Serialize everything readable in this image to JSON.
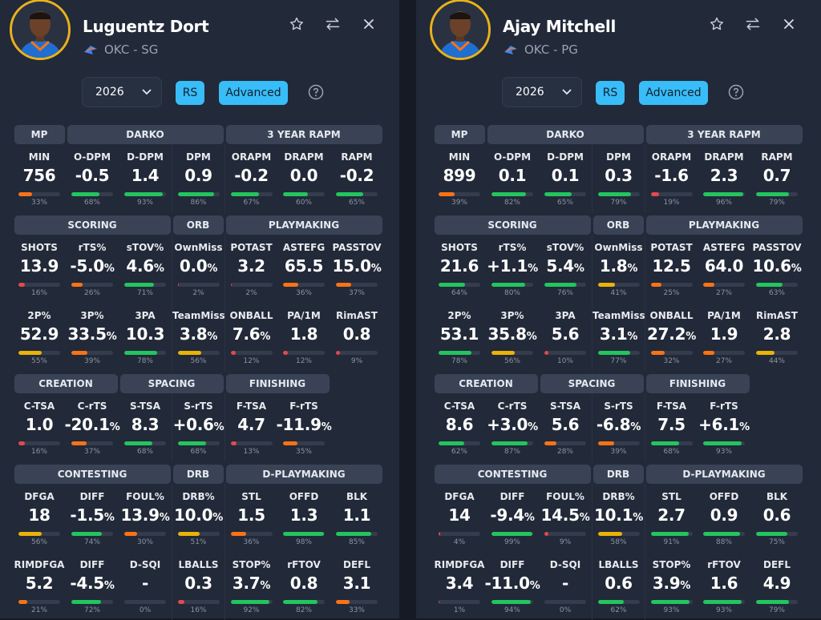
{
  "colors": {
    "accent": "#38bdf8",
    "ring": "#e9b21c",
    "red": "#e5484d",
    "orange": "#f97316",
    "yellow": "#eab308",
    "green": "#22c55e"
  },
  "players": [
    {
      "name": "Luguentz Dort",
      "team_pos": "OKC - SG",
      "season": "2026",
      "rs_label": "RS",
      "mode_label": "Advanced",
      "sections": [
        {
          "headers": [
            {
              "label": "MP",
              "span": 1
            },
            {
              "label": "DARKO",
              "span": 3
            },
            {
              "label": "3 YEAR RAPM",
              "span": 3
            }
          ],
          "rows": [
            [
              {
                "label": "MIN",
                "value": "756",
                "unit": "",
                "pct": 33
              },
              {
                "label": "O-DPM",
                "value": "-0.5",
                "unit": "",
                "pct": 68
              },
              {
                "label": "D-DPM",
                "value": "1.4",
                "unit": "",
                "pct": 93
              },
              {
                "label": "DPM",
                "value": "0.9",
                "unit": "",
                "pct": 86
              },
              {
                "label": "ORAPM",
                "value": "-0.2",
                "unit": "",
                "pct": 67
              },
              {
                "label": "DRAPM",
                "value": "0.0",
                "unit": "",
                "pct": 60
              },
              {
                "label": "RAPM",
                "value": "-0.2",
                "unit": "",
                "pct": 65
              }
            ]
          ]
        },
        {
          "headers": [
            {
              "label": "SCORING",
              "span": 3
            },
            {
              "label": "ORB",
              "span": 1
            },
            {
              "label": "PLAYMAKING",
              "span": 3
            }
          ],
          "rows": [
            [
              {
                "label": "SHOTS",
                "value": "13.9",
                "unit": "",
                "pct": 16
              },
              {
                "label": "rTS%",
                "value": "-5.0",
                "unit": "%",
                "pct": 26
              },
              {
                "label": "sTOV%",
                "value": "4.6",
                "unit": "%",
                "pct": 71
              },
              {
                "label": "OwnMiss",
                "value": "0.0",
                "unit": "%",
                "pct": 2
              },
              {
                "label": "POTAST",
                "value": "3.2",
                "unit": "",
                "pct": 2
              },
              {
                "label": "ASTEFG",
                "value": "65.5",
                "unit": "",
                "pct": 36
              },
              {
                "label": "PASSTOV",
                "value": "15.0",
                "unit": "%",
                "pct": 37
              }
            ],
            [
              {
                "label": "2P%",
                "value": "52.9",
                "unit": "",
                "pct": 55
              },
              {
                "label": "3P%",
                "value": "33.5",
                "unit": "%",
                "pct": 39
              },
              {
                "label": "3PA",
                "value": "10.3",
                "unit": "",
                "pct": 78
              },
              {
                "label": "TeamMiss",
                "value": "3.8",
                "unit": "%",
                "pct": 56
              },
              {
                "label": "ONBALL",
                "value": "7.6",
                "unit": "%",
                "pct": 12
              },
              {
                "label": "PA/1M",
                "value": "1.8",
                "unit": "",
                "pct": 12
              },
              {
                "label": "RimAST",
                "value": "0.8",
                "unit": "",
                "pct": 9
              }
            ]
          ]
        },
        {
          "headers": [
            {
              "label": "CREATION",
              "span": 2
            },
            {
              "label": "SPACING",
              "span": 2
            },
            {
              "label": "FINISHING",
              "span": 2
            }
          ],
          "rows": [
            [
              {
                "label": "C-TSA",
                "value": "1.0",
                "unit": "",
                "pct": 16
              },
              {
                "label": "C-rTS",
                "value": "-20.1",
                "unit": "%",
                "pct": 37
              },
              {
                "label": "S-TSA",
                "value": "8.3",
                "unit": "",
                "pct": 68
              },
              {
                "label": "S-rTS",
                "value": "+0.6",
                "unit": "%",
                "pct": 68
              },
              {
                "label": "F-TSA",
                "value": "4.7",
                "unit": "",
                "pct": 13
              },
              {
                "label": "F-rTS",
                "value": "-11.9",
                "unit": "%",
                "pct": 35
              }
            ]
          ]
        },
        {
          "headers": [
            {
              "label": "CONTESTING",
              "span": 3
            },
            {
              "label": "DRB",
              "span": 1
            },
            {
              "label": "D-PLAYMAKING",
              "span": 3
            }
          ],
          "rows": [
            [
              {
                "label": "DFGA",
                "value": "18",
                "unit": "",
                "pct": 56
              },
              {
                "label": "DIFF",
                "value": "-1.5",
                "unit": "%",
                "pct": 74
              },
              {
                "label": "FOUL%",
                "value": "13.9",
                "unit": "%",
                "pct": 30
              },
              {
                "label": "DRB%",
                "value": "10.0",
                "unit": "%",
                "pct": 51
              },
              {
                "label": "STL",
                "value": "1.5",
                "unit": "",
                "pct": 36
              },
              {
                "label": "OFFD",
                "value": "1.3",
                "unit": "",
                "pct": 98
              },
              {
                "label": "BLK",
                "value": "1.1",
                "unit": "",
                "pct": 85
              }
            ],
            [
              {
                "label": "RIMDFGA",
                "value": "5.2",
                "unit": "",
                "pct": 21
              },
              {
                "label": "DIFF",
                "value": "-4.5",
                "unit": "%",
                "pct": 72
              },
              {
                "label": "D-SQI",
                "value": "-",
                "unit": "",
                "pct": 0
              },
              {
                "label": "LBALLS",
                "value": "0.3",
                "unit": "",
                "pct": 16
              },
              {
                "label": "STOP%",
                "value": "3.7",
                "unit": "%",
                "pct": 92
              },
              {
                "label": "rFTOV",
                "value": "0.8",
                "unit": "",
                "pct": 82
              },
              {
                "label": "DEFL",
                "value": "3.1",
                "unit": "",
                "pct": 33
              }
            ]
          ]
        }
      ]
    },
    {
      "name": "Ajay Mitchell",
      "team_pos": "OKC - PG",
      "season": "2026",
      "rs_label": "RS",
      "mode_label": "Advanced",
      "sections": [
        {
          "headers": [
            {
              "label": "MP",
              "span": 1
            },
            {
              "label": "DARKO",
              "span": 3
            },
            {
              "label": "3 YEAR RAPM",
              "span": 3
            }
          ],
          "rows": [
            [
              {
                "label": "MIN",
                "value": "899",
                "unit": "",
                "pct": 39
              },
              {
                "label": "O-DPM",
                "value": "0.1",
                "unit": "",
                "pct": 82
              },
              {
                "label": "D-DPM",
                "value": "0.1",
                "unit": "",
                "pct": 65
              },
              {
                "label": "DPM",
                "value": "0.3",
                "unit": "",
                "pct": 79
              },
              {
                "label": "ORAPM",
                "value": "-1.6",
                "unit": "",
                "pct": 19
              },
              {
                "label": "DRAPM",
                "value": "2.3",
                "unit": "",
                "pct": 96
              },
              {
                "label": "RAPM",
                "value": "0.7",
                "unit": "",
                "pct": 79
              }
            ]
          ]
        },
        {
          "headers": [
            {
              "label": "SCORING",
              "span": 3
            },
            {
              "label": "ORB",
              "span": 1
            },
            {
              "label": "PLAYMAKING",
              "span": 3
            }
          ],
          "rows": [
            [
              {
                "label": "SHOTS",
                "value": "21.6",
                "unit": "",
                "pct": 64
              },
              {
                "label": "rTS%",
                "value": "+1.1",
                "unit": "%",
                "pct": 80
              },
              {
                "label": "sTOV%",
                "value": "5.4",
                "unit": "%",
                "pct": 76
              },
              {
                "label": "OwnMiss",
                "value": "1.8",
                "unit": "%",
                "pct": 41
              },
              {
                "label": "POTAST",
                "value": "12.5",
                "unit": "",
                "pct": 25
              },
              {
                "label": "ASTEFG",
                "value": "64.0",
                "unit": "",
                "pct": 27
              },
              {
                "label": "PASSTOV",
                "value": "10.6",
                "unit": "%",
                "pct": 63
              }
            ],
            [
              {
                "label": "2P%",
                "value": "53.1",
                "unit": "",
                "pct": 78
              },
              {
                "label": "3P%",
                "value": "35.8",
                "unit": "%",
                "pct": 56
              },
              {
                "label": "3PA",
                "value": "5.6",
                "unit": "",
                "pct": 10
              },
              {
                "label": "TeamMiss",
                "value": "3.1",
                "unit": "%",
                "pct": 77
              },
              {
                "label": "ONBALL",
                "value": "27.2",
                "unit": "%",
                "pct": 32
              },
              {
                "label": "PA/1M",
                "value": "1.9",
                "unit": "",
                "pct": 27
              },
              {
                "label": "RimAST",
                "value": "2.8",
                "unit": "",
                "pct": 44
              }
            ]
          ]
        },
        {
          "headers": [
            {
              "label": "CREATION",
              "span": 2
            },
            {
              "label": "SPACING",
              "span": 2
            },
            {
              "label": "FINISHING",
              "span": 2
            }
          ],
          "rows": [
            [
              {
                "label": "C-TSA",
                "value": "8.6",
                "unit": "",
                "pct": 62
              },
              {
                "label": "C-rTS",
                "value": "+3.0",
                "unit": "%",
                "pct": 87
              },
              {
                "label": "S-TSA",
                "value": "5.6",
                "unit": "",
                "pct": 28
              },
              {
                "label": "S-rTS",
                "value": "-6.8",
                "unit": "%",
                "pct": 39
              },
              {
                "label": "F-TSA",
                "value": "7.5",
                "unit": "",
                "pct": 68
              },
              {
                "label": "F-rTS",
                "value": "+6.1",
                "unit": "%",
                "pct": 93
              }
            ]
          ]
        },
        {
          "headers": [
            {
              "label": "CONTESTING",
              "span": 3
            },
            {
              "label": "DRB",
              "span": 1
            },
            {
              "label": "D-PLAYMAKING",
              "span": 3
            }
          ],
          "rows": [
            [
              {
                "label": "DFGA",
                "value": "14",
                "unit": "",
                "pct": 4
              },
              {
                "label": "DIFF",
                "value": "-9.4",
                "unit": "%",
                "pct": 99
              },
              {
                "label": "FOUL%",
                "value": "14.5",
                "unit": "%",
                "pct": 9
              },
              {
                "label": "DRB%",
                "value": "10.1",
                "unit": "%",
                "pct": 58
              },
              {
                "label": "STL",
                "value": "2.7",
                "unit": "",
                "pct": 91
              },
              {
                "label": "OFFD",
                "value": "0.9",
                "unit": "",
                "pct": 88
              },
              {
                "label": "BLK",
                "value": "0.6",
                "unit": "",
                "pct": 75
              }
            ],
            [
              {
                "label": "RIMDFGA",
                "value": "3.4",
                "unit": "",
                "pct": 1
              },
              {
                "label": "DIFF",
                "value": "-11.0",
                "unit": "%",
                "pct": 94
              },
              {
                "label": "D-SQI",
                "value": "-",
                "unit": "",
                "pct": 0
              },
              {
                "label": "LBALLS",
                "value": "0.6",
                "unit": "",
                "pct": 62
              },
              {
                "label": "STOP%",
                "value": "3.9",
                "unit": "%",
                "pct": 93
              },
              {
                "label": "rFTOV",
                "value": "1.6",
                "unit": "",
                "pct": 93
              },
              {
                "label": "DEFL",
                "value": "4.9",
                "unit": "",
                "pct": 79
              }
            ]
          ]
        }
      ]
    }
  ]
}
